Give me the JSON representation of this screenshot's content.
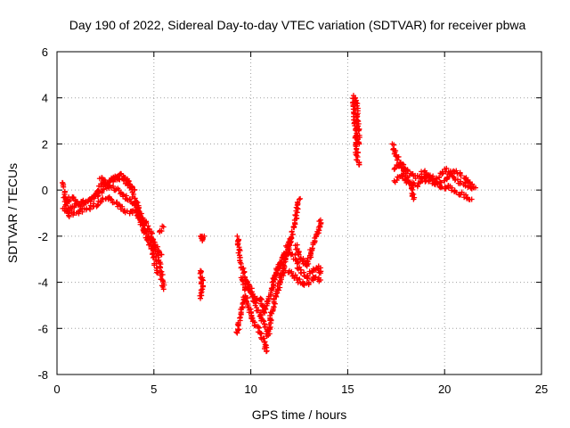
{
  "chart_data": {
    "type": "scatter",
    "title": "Day 190 of 2022, Sidereal Day-to-day VTEC variation (SDTVAR) for receiver pbwa",
    "xlabel": "GPS time / hours",
    "ylabel": "SDTVAR / TECUs",
    "xlim": [
      0,
      25
    ],
    "ylim": [
      -8,
      6
    ],
    "xticks": [
      0,
      5,
      10,
      15,
      20,
      25
    ],
    "yticks": [
      -8,
      -6,
      -4,
      -2,
      0,
      2,
      4,
      6
    ],
    "grid": true,
    "marker": "plus",
    "series": [
      {
        "color": "#ff0000",
        "tracks": [
          [
            [
              0.3,
              0.3
            ],
            [
              0.4,
              -0.3
            ],
            [
              0.6,
              -0.9
            ],
            [
              0.9,
              -0.7
            ],
            [
              1.3,
              -0.5
            ],
            [
              1.8,
              -0.4
            ],
            [
              2.2,
              -0.1
            ],
            [
              2.6,
              0.2
            ],
            [
              3.0,
              0.6
            ],
            [
              3.4,
              0.5
            ],
            [
              3.8,
              0.1
            ],
            [
              4.2,
              -0.8
            ],
            [
              4.6,
              -1.8
            ],
            [
              5.0,
              -2.4
            ],
            [
              5.3,
              -3.2
            ],
            [
              5.5,
              -4.3
            ]
          ],
          [
            [
              0.3,
              -0.8
            ],
            [
              0.6,
              -1.1
            ],
            [
              1.0,
              -1.0
            ],
            [
              1.4,
              -0.8
            ],
            [
              1.9,
              -0.7
            ],
            [
              2.3,
              -0.5
            ],
            [
              2.7,
              -0.3
            ],
            [
              3.1,
              -0.6
            ],
            [
              3.5,
              -0.9
            ],
            [
              3.9,
              -1.0
            ],
            [
              4.2,
              -0.9
            ],
            [
              4.5,
              -1.3
            ],
            [
              4.8,
              -1.8
            ],
            [
              5.1,
              -2.5
            ],
            [
              5.4,
              -2.8
            ]
          ],
          [
            [
              0.4,
              -0.5
            ],
            [
              0.8,
              -0.3
            ],
            [
              1.2,
              -0.7
            ],
            [
              1.6,
              -0.5
            ],
            [
              2.0,
              -0.2
            ],
            [
              2.4,
              0.4
            ],
            [
              2.8,
              0.1
            ],
            [
              3.2,
              0.0
            ],
            [
              3.6,
              -0.4
            ],
            [
              4.0,
              -0.6
            ],
            [
              4.3,
              -1.4
            ],
            [
              4.7,
              -2.2
            ],
            [
              5.0,
              -2.9
            ],
            [
              5.2,
              -3.6
            ]
          ],
          [
            [
              2.2,
              0.5
            ],
            [
              2.5,
              0.3
            ],
            [
              2.9,
              0.4
            ],
            [
              3.3,
              0.7
            ],
            [
              3.7,
              0.4
            ],
            [
              4.0,
              0.0
            ]
          ],
          [
            [
              5.3,
              -1.8
            ],
            [
              5.5,
              -1.6
            ]
          ],
          [
            [
              7.4,
              -2.0
            ],
            [
              7.5,
              -2.2
            ],
            [
              7.6,
              -2.0
            ]
          ],
          [
            [
              7.4,
              -3.5
            ],
            [
              7.5,
              -3.8
            ],
            [
              7.5,
              -4.3
            ],
            [
              7.4,
              -4.7
            ]
          ],
          [
            [
              9.3,
              -2.0
            ],
            [
              9.4,
              -2.6
            ],
            [
              9.5,
              -3.2
            ],
            [
              9.7,
              -3.8
            ],
            [
              9.9,
              -4.3
            ],
            [
              10.1,
              -4.6
            ],
            [
              10.3,
              -5.1
            ],
            [
              10.5,
              -5.4
            ],
            [
              10.7,
              -5.8
            ],
            [
              10.9,
              -6.3
            ],
            [
              11.0,
              -5.6
            ],
            [
              11.2,
              -4.9
            ],
            [
              11.4,
              -4.3
            ],
            [
              11.6,
              -3.6
            ],
            [
              11.8,
              -3.0
            ],
            [
              12.0,
              -2.4
            ],
            [
              12.2,
              -1.6
            ],
            [
              12.4,
              -0.8
            ],
            [
              12.5,
              -0.4
            ]
          ],
          [
            [
              9.3,
              -6.2
            ],
            [
              9.5,
              -5.3
            ],
            [
              9.7,
              -4.6
            ],
            [
              9.9,
              -5.1
            ],
            [
              10.1,
              -5.7
            ],
            [
              10.3,
              -5.9
            ],
            [
              10.5,
              -6.2
            ],
            [
              10.7,
              -6.6
            ],
            [
              10.8,
              -7.0
            ]
          ],
          [
            [
              9.5,
              -3.8
            ],
            [
              9.7,
              -4.3
            ],
            [
              9.9,
              -4.1
            ],
            [
              10.1,
              -4.6
            ],
            [
              10.3,
              -4.8
            ],
            [
              10.5,
              -4.7
            ],
            [
              10.7,
              -5.3
            ],
            [
              10.9,
              -4.8
            ],
            [
              11.1,
              -4.3
            ],
            [
              11.3,
              -3.6
            ],
            [
              11.5,
              -3.2
            ],
            [
              11.7,
              -2.8
            ],
            [
              11.9,
              -2.4
            ],
            [
              12.1,
              -2.1
            ]
          ],
          [
            [
              11.1,
              -4.0
            ],
            [
              11.4,
              -3.4
            ],
            [
              11.7,
              -3.0
            ],
            [
              12.0,
              -2.6
            ],
            [
              12.3,
              -3.0
            ],
            [
              12.6,
              -3.6
            ],
            [
              12.9,
              -3.8
            ],
            [
              13.2,
              -3.5
            ],
            [
              13.5,
              -3.3
            ],
            [
              13.6,
              -3.6
            ]
          ],
          [
            [
              11.5,
              -3.8
            ],
            [
              11.8,
              -3.5
            ],
            [
              12.1,
              -3.6
            ],
            [
              12.4,
              -3.9
            ],
            [
              12.7,
              -4.1
            ],
            [
              13.0,
              -4.0
            ],
            [
              13.3,
              -3.8
            ],
            [
              13.6,
              -3.9
            ]
          ],
          [
            [
              12.3,
              -2.4
            ],
            [
              12.6,
              -3.0
            ],
            [
              12.9,
              -3.3
            ],
            [
              13.1,
              -2.7
            ],
            [
              13.3,
              -2.2
            ],
            [
              13.5,
              -1.7
            ],
            [
              13.6,
              -1.3
            ]
          ],
          [
            [
              15.3,
              4.1
            ],
            [
              15.35,
              3.5
            ],
            [
              15.4,
              2.6
            ],
            [
              15.45,
              1.8
            ],
            [
              15.5,
              1.3
            ],
            [
              15.6,
              1.1
            ]
          ],
          [
            [
              15.4,
              4.0
            ],
            [
              15.5,
              3.2
            ],
            [
              15.55,
              2.6
            ],
            [
              15.6,
              2.0
            ]
          ],
          [
            [
              17.3,
              2.0
            ],
            [
              17.5,
              1.5
            ],
            [
              17.7,
              1.1
            ],
            [
              17.9,
              0.8
            ],
            [
              18.1,
              0.4
            ],
            [
              18.3,
              0.1
            ],
            [
              18.4,
              -0.4
            ]
          ],
          [
            [
              17.4,
              0.9
            ],
            [
              17.7,
              1.2
            ],
            [
              18.0,
              0.9
            ],
            [
              18.4,
              0.6
            ],
            [
              18.8,
              0.5
            ],
            [
              19.2,
              0.4
            ],
            [
              19.6,
              0.3
            ],
            [
              20.0,
              0.4
            ],
            [
              20.4,
              0.8
            ],
            [
              20.8,
              0.7
            ],
            [
              21.2,
              0.4
            ],
            [
              21.5,
              0.1
            ]
          ],
          [
            [
              17.4,
              0.4
            ],
            [
              17.8,
              0.6
            ],
            [
              18.2,
              0.3
            ],
            [
              18.6,
              0.2
            ],
            [
              19.0,
              0.6
            ],
            [
              19.4,
              0.4
            ],
            [
              19.8,
              0.1
            ],
            [
              20.2,
              0.2
            ],
            [
              20.6,
              -0.1
            ],
            [
              21.0,
              -0.2
            ],
            [
              21.4,
              -0.4
            ]
          ],
          [
            [
              18.8,
              0.8
            ],
            [
              19.2,
              0.6
            ],
            [
              19.6,
              0.5
            ],
            [
              20.0,
              0.9
            ],
            [
              20.4,
              0.6
            ],
            [
              20.8,
              0.3
            ],
            [
              21.2,
              0.2
            ],
            [
              21.6,
              0.1
            ]
          ]
        ]
      }
    ]
  }
}
